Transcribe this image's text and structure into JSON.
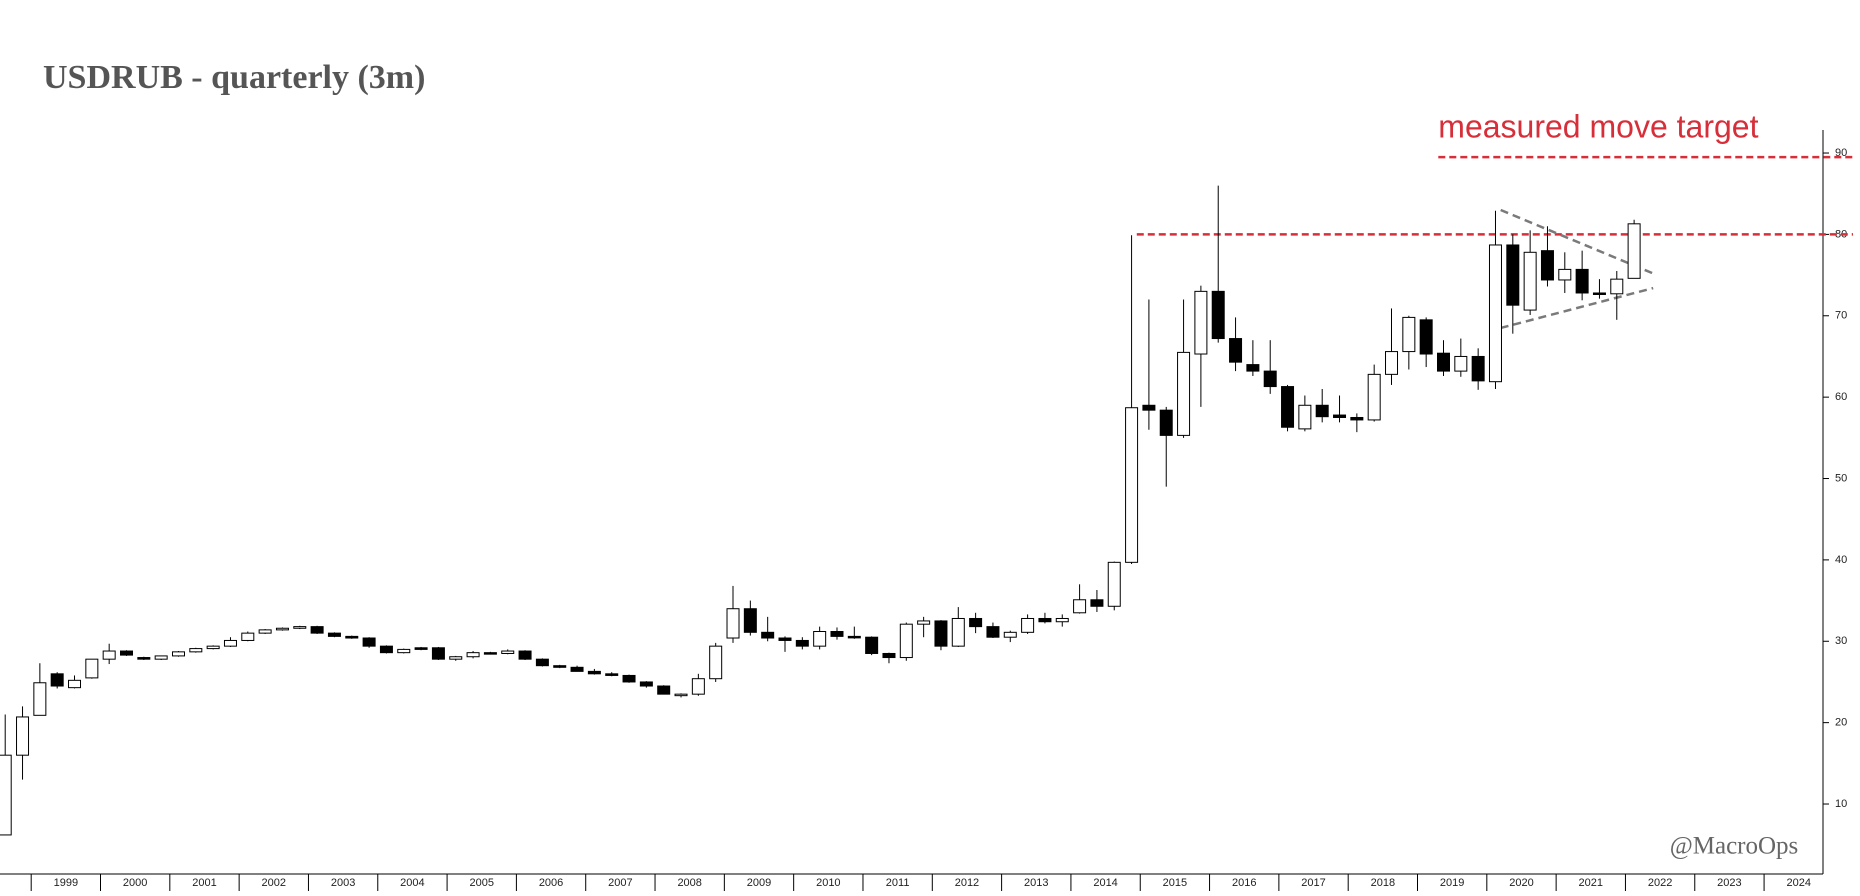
{
  "chart_data": {
    "type": "candlestick",
    "title": "USDRUB - quarterly (3m)",
    "watermark": "@MacroOps",
    "x": [
      1998.5,
      1998.75,
      1999,
      1999.25,
      1999.5,
      1999.75,
      2000,
      2000.25,
      2000.5,
      2000.75,
      2001,
      2001.25,
      2001.5,
      2001.75,
      2002,
      2002.25,
      2002.5,
      2002.75,
      2003,
      2003.25,
      2003.5,
      2003.75,
      2004,
      2004.25,
      2004.5,
      2004.75,
      2005,
      2005.25,
      2005.5,
      2005.75,
      2006,
      2006.25,
      2006.5,
      2006.75,
      2007,
      2007.25,
      2007.5,
      2007.75,
      2008,
      2008.25,
      2008.5,
      2008.75,
      2009,
      2009.25,
      2009.5,
      2009.75,
      2010,
      2010.25,
      2010.5,
      2010.75,
      2011,
      2011.25,
      2011.5,
      2011.75,
      2012,
      2012.25,
      2012.5,
      2012.75,
      2013,
      2013.25,
      2013.5,
      2013.75,
      2014,
      2014.25,
      2014.5,
      2014.75,
      2015,
      2015.25,
      2015.5,
      2015.75,
      2016,
      2016.25,
      2016.5,
      2016.75,
      2017,
      2017.25,
      2017.5,
      2017.75,
      2018,
      2018.25,
      2018.5,
      2018.75,
      2019,
      2019.25,
      2019.5,
      2019.75,
      2020,
      2020.25,
      2020.5,
      2020.75,
      2021,
      2021.25,
      2021.5,
      2021.75,
      2022
    ],
    "open": [
      6.2,
      16.0,
      20.9,
      26.0,
      24.3,
      25.5,
      27.8,
      28.8,
      28.0,
      27.8,
      28.2,
      28.7,
      29.1,
      29.4,
      30.1,
      31.0,
      31.4,
      31.6,
      31.8,
      31.0,
      30.6,
      30.4,
      29.4,
      28.6,
      29.2,
      29.2,
      27.8,
      28.1,
      28.6,
      28.5,
      28.8,
      27.8,
      27.0,
      26.8,
      26.3,
      26.0,
      25.8,
      25.0,
      24.5,
      23.5,
      23.5,
      25.4,
      30.4,
      34.0,
      31.1,
      30.4,
      30.1,
      29.4,
      31.2,
      30.6,
      30.5,
      28.5,
      28.0,
      32.1,
      32.5,
      29.4,
      32.8,
      31.8,
      30.5,
      31.1,
      32.8,
      32.4,
      33.5,
      35.1,
      34.3,
      39.7,
      59.0,
      58.4,
      55.3,
      65.3,
      73.0,
      67.2,
      64.0,
      63.2,
      61.3,
      56.1,
      59.0,
      57.8,
      57.5,
      57.2,
      62.8,
      65.6,
      69.5,
      65.4,
      63.2,
      65.0,
      61.9,
      78.7,
      70.7,
      78.0,
      74.4,
      75.7,
      72.8,
      72.7,
      74.6
    ],
    "high": [
      21.0,
      22.0,
      27.3,
      26.2,
      25.8,
      27.8,
      29.7,
      28.9,
      28.1,
      28.2,
      28.8,
      29.2,
      29.5,
      30.5,
      31.2,
      31.5,
      31.7,
      31.9,
      31.9,
      31.1,
      30.7,
      30.5,
      29.5,
      29.1,
      29.3,
      29.3,
      28.2,
      28.8,
      28.7,
      29.0,
      28.9,
      27.9,
      27.1,
      27.0,
      26.6,
      26.2,
      25.9,
      25.1,
      24.6,
      23.6,
      26.0,
      29.8,
      36.8,
      35.0,
      33.0,
      30.6,
      30.5,
      31.8,
      31.7,
      31.8,
      30.6,
      28.6,
      32.3,
      33.0,
      32.6,
      34.2,
      33.5,
      32.3,
      31.3,
      33.3,
      33.5,
      33.3,
      37.0,
      36.3,
      39.8,
      79.9,
      72.0,
      58.8,
      72.0,
      73.7,
      86.0,
      69.8,
      67.0,
      67.0,
      61.5,
      60.2,
      61.0,
      60.2,
      58.0,
      64.0,
      70.9,
      70.0,
      69.8,
      67.0,
      67.2,
      66.0,
      82.9,
      80.0,
      80.5,
      81.0,
      77.8,
      78.0,
      74.5,
      75.5,
      81.8
    ],
    "low": [
      6.2,
      13.0,
      20.9,
      24.2,
      24.2,
      25.4,
      27.2,
      28.2,
      27.7,
      27.7,
      28.1,
      28.6,
      29.0,
      29.3,
      30.0,
      30.9,
      31.3,
      31.5,
      30.9,
      30.5,
      30.3,
      29.2,
      28.5,
      28.5,
      28.9,
      27.7,
      27.6,
      27.9,
      28.4,
      28.4,
      27.7,
      26.9,
      26.7,
      26.3,
      25.9,
      25.7,
      24.9,
      24.3,
      23.5,
      23.1,
      23.3,
      25.0,
      29.8,
      30.7,
      30.0,
      28.7,
      29.0,
      29.0,
      30.2,
      30.3,
      28.3,
      27.3,
      27.6,
      30.5,
      28.9,
      29.3,
      31.0,
      30.4,
      29.9,
      30.9,
      32.2,
      31.8,
      33.4,
      33.6,
      33.8,
      39.5,
      56.0,
      49.0,
      55.0,
      58.8,
      66.7,
      63.2,
      62.6,
      60.4,
      55.8,
      55.8,
      56.9,
      56.9,
      55.7,
      57.0,
      61.5,
      63.4,
      63.7,
      62.6,
      62.5,
      60.9,
      61.0,
      67.8,
      70.1,
      73.6,
      72.8,
      71.9,
      72.1,
      69.5,
      74.6
    ],
    "close": [
      16.0,
      20.7,
      24.9,
      24.5,
      25.2,
      27.8,
      28.8,
      28.3,
      27.8,
      28.2,
      28.7,
      29.1,
      29.4,
      30.1,
      31.0,
      31.4,
      31.6,
      31.8,
      31.0,
      30.6,
      30.4,
      29.4,
      28.6,
      29.0,
      29.0,
      27.8,
      28.1,
      28.6,
      28.5,
      28.8,
      27.8,
      27.0,
      26.8,
      26.3,
      26.0,
      25.8,
      25.0,
      24.5,
      23.5,
      23.5,
      25.4,
      29.4,
      34.0,
      31.1,
      30.4,
      30.1,
      29.4,
      31.2,
      30.6,
      30.5,
      28.5,
      28.0,
      32.1,
      32.5,
      29.4,
      32.8,
      31.8,
      30.5,
      31.1,
      32.8,
      32.4,
      32.8,
      35.1,
      34.3,
      39.7,
      58.7,
      58.4,
      55.3,
      65.5,
      73.0,
      67.2,
      64.3,
      63.2,
      61.3,
      56.3,
      59.0,
      57.6,
      57.5,
      57.2,
      62.8,
      65.6,
      69.8,
      65.3,
      63.2,
      65.0,
      62.0,
      78.7,
      71.3,
      77.8,
      74.4,
      75.7,
      72.8,
      72.7,
      74.5,
      81.3
    ],
    "up_color": "#ffffff",
    "down_color": "#000000",
    "wick_color": "#000000",
    "xlim": [
      1998.55,
      2024.85
    ],
    "xticks": [
      1999,
      2000,
      2001,
      2002,
      2003,
      2004,
      2005,
      2006,
      2007,
      2008,
      2009,
      2010,
      2011,
      2012,
      2013,
      2014,
      2015,
      2016,
      2017,
      2018,
      2019,
      2020,
      2021,
      2022,
      2023,
      2024
    ],
    "ylim": [
      1.4,
      91.6
    ],
    "yticks": [
      10,
      20,
      30,
      40,
      50,
      60,
      70,
      80,
      90
    ],
    "reference_lines": [
      {
        "y": 80,
        "x0": 2014.95,
        "color": "#d62f3a"
      },
      {
        "y": 89.5,
        "x0": 2019.3,
        "color": "#d62f3a",
        "label": "measured move target"
      }
    ],
    "trend_lines": [
      {
        "x": [
          2020.2,
          2022.4
        ],
        "y": [
          83,
          75.2
        ],
        "color": "#7a7a7a"
      },
      {
        "x": [
          2020.2,
          2022.4
        ],
        "y": [
          68.5,
          73.4
        ],
        "color": "#7a7a7a"
      }
    ]
  }
}
